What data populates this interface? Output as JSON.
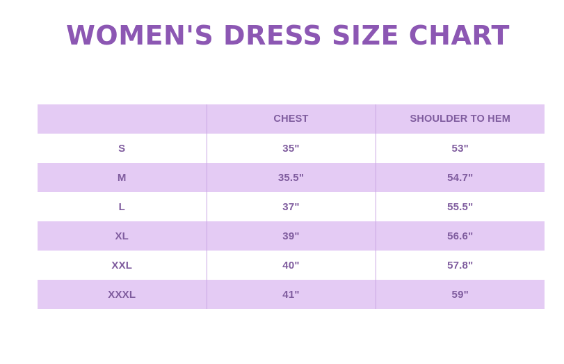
{
  "title": "WOMEN'S DRESS SIZE CHART",
  "colors": {
    "title": "#8c57b3",
    "row_shade": "#e4cbf4",
    "text": "#7f5c9e"
  },
  "table": {
    "headers": [
      "",
      "CHEST",
      "SHOULDER TO HEM"
    ],
    "rows": [
      {
        "size": "S",
        "chest": "35\"",
        "hem": "53\""
      },
      {
        "size": "M",
        "chest": "35.5\"",
        "hem": "54.7\""
      },
      {
        "size": "L",
        "chest": "37\"",
        "hem": "55.5\""
      },
      {
        "size": "XL",
        "chest": "39\"",
        "hem": "56.6\""
      },
      {
        "size": "XXL",
        "chest": "40\"",
        "hem": "57.8\""
      },
      {
        "size": "XXXL",
        "chest": "41\"",
        "hem": "59\""
      }
    ]
  }
}
